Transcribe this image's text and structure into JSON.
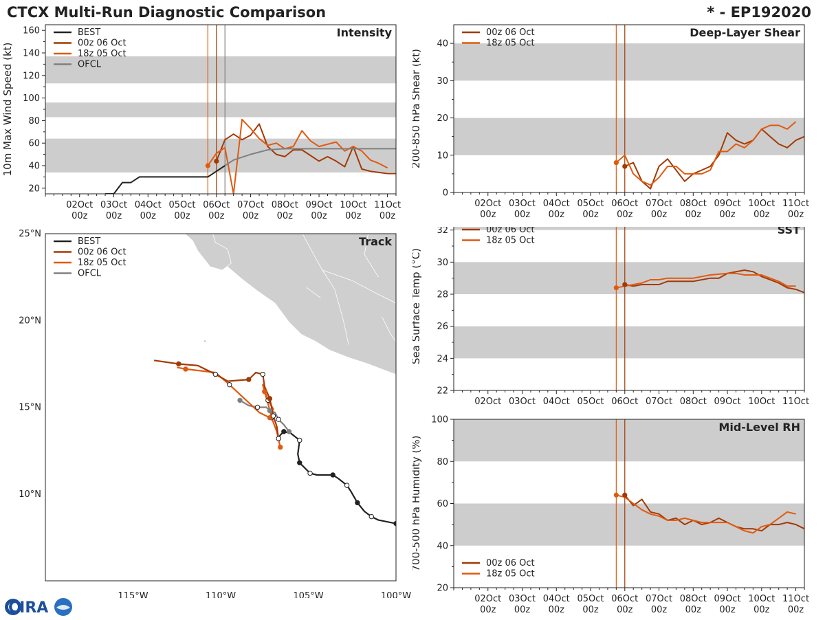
{
  "header": {
    "title": "CTCX Multi-Run Diagnostic Comparison",
    "storm_id": "* - EP192020"
  },
  "logo": {
    "text": "CIRA"
  },
  "colors": {
    "best": "#222222",
    "run_00z": "#a23a05",
    "run_18z": "#e05a10",
    "ofcl": "#808080",
    "band": "#cdcdcd"
  },
  "time_ticks": [
    {
      "day": 2,
      "l1": "02Oct",
      "l2": "00z"
    },
    {
      "day": 3,
      "l1": "03Oct",
      "l2": "00z"
    },
    {
      "day": 4,
      "l1": "04Oct",
      "l2": "00z"
    },
    {
      "day": 5,
      "l1": "05Oct",
      "l2": "00z"
    },
    {
      "day": 6,
      "l1": "06Oct",
      "l2": "00z"
    },
    {
      "day": 7,
      "l1": "07Oct",
      "l2": "00z"
    },
    {
      "day": 8,
      "l1": "08Oct",
      "l2": "00z"
    },
    {
      "day": 9,
      "l1": "09Oct",
      "l2": "00z"
    },
    {
      "day": 10,
      "l1": "10Oct",
      "l2": "00z"
    },
    {
      "day": 11,
      "l1": "11Oct",
      "l2": "00z"
    }
  ],
  "chart_data": [
    {
      "id": "intensity",
      "type": "line",
      "title": "Intensity",
      "ylabel": "10m Max Wind Speed (kt)",
      "xlim": [
        1.0,
        11.25
      ],
      "ylim": [
        15,
        165
      ],
      "yticks": [
        20,
        40,
        60,
        80,
        100,
        120,
        140,
        160
      ],
      "bands": [
        [
          34,
          64
        ],
        [
          83,
          96
        ],
        [
          113,
          137
        ]
      ],
      "vlines": [
        {
          "x": 5.75,
          "series": "18z"
        },
        {
          "x": 6.0,
          "series": "00z"
        },
        {
          "x": 6.25,
          "series": "ofcl"
        }
      ],
      "legend": [
        {
          "label": "BEST",
          "series": "best"
        },
        {
          "label": "00z 06 Oct",
          "series": "00z"
        },
        {
          "label": "18z 05 Oct",
          "series": "18z"
        },
        {
          "label": "OFCL",
          "series": "ofcl"
        }
      ],
      "series": [
        {
          "name": "BEST",
          "key": "best",
          "x": [
            2.75,
            3.0,
            3.25,
            3.5,
            3.75,
            4.0,
            4.5,
            5.0,
            5.5,
            5.75,
            6.0,
            6.25
          ],
          "y": [
            15,
            15,
            25,
            25,
            30,
            30,
            30,
            30,
            30,
            30,
            35,
            40
          ]
        },
        {
          "name": "00z 06 Oct",
          "key": "00z",
          "x": [
            6.0,
            6.25,
            6.5,
            6.75,
            7.0,
            7.25,
            7.5,
            7.75,
            8.0,
            8.25,
            8.5,
            9.0,
            9.25,
            9.5,
            9.75,
            10.0,
            10.25,
            10.5,
            11.0,
            11.25
          ],
          "y": [
            44,
            63,
            68,
            63,
            67,
            77,
            57,
            50,
            48,
            54,
            54,
            44,
            48,
            44,
            39,
            57,
            37,
            35,
            33,
            33
          ]
        },
        {
          "name": "18z 05 Oct",
          "key": "18z",
          "x": [
            5.75,
            6.0,
            6.25,
            6.5,
            6.75,
            7.0,
            7.25,
            7.5,
            7.75,
            8.0,
            8.25,
            8.5,
            8.75,
            9.0,
            9.5,
            9.75,
            10.0,
            10.25,
            10.5,
            10.75,
            11.0
          ],
          "y": [
            40,
            51,
            56,
            15,
            81,
            73,
            64,
            58,
            60,
            55,
            57,
            71,
            62,
            57,
            61,
            53,
            57,
            53,
            45,
            42,
            38
          ]
        },
        {
          "name": "OFCL",
          "key": "ofcl",
          "x": [
            6.25,
            6.5,
            7.0,
            7.5,
            8.0,
            8.5,
            9.0,
            9.5,
            10.0,
            11.25
          ],
          "y": [
            40,
            45,
            50,
            54,
            55,
            55,
            55,
            55,
            55,
            55
          ]
        }
      ],
      "markers": [
        {
          "key": "18z",
          "x": 5.75,
          "y": 40
        },
        {
          "key": "00z",
          "x": 6.0,
          "y": 44
        }
      ]
    },
    {
      "id": "shear",
      "type": "line",
      "title": "Deep-Layer Shear",
      "ylabel": "200-850 hPa Shear (kt)",
      "xlim": [
        1.0,
        11.25
      ],
      "ylim": [
        0,
        45
      ],
      "yticks": [
        0,
        10,
        20,
        30,
        40
      ],
      "bands": [
        [
          10,
          20
        ],
        [
          30,
          40
        ]
      ],
      "vlines": [
        {
          "x": 5.75,
          "series": "18z"
        },
        {
          "x": 6.0,
          "series": "00z"
        }
      ],
      "legend": [
        {
          "label": "00z 06 Oct",
          "series": "00z"
        },
        {
          "label": "18z 05 Oct",
          "series": "18z"
        }
      ],
      "series": [
        {
          "name": "00z 06 Oct",
          "key": "00z",
          "x": [
            6.0,
            6.25,
            6.5,
            6.75,
            7.0,
            7.25,
            7.5,
            7.75,
            8.0,
            8.25,
            8.5,
            8.75,
            9.0,
            9.25,
            9.5,
            9.75,
            10.0,
            10.25,
            10.5,
            10.75,
            11.0,
            11.25
          ],
          "y": [
            7,
            8,
            3,
            1,
            7,
            9,
            6,
            3,
            5,
            6,
            7,
            10,
            16,
            14,
            13,
            14,
            17,
            15,
            13,
            12,
            14,
            15
          ]
        },
        {
          "name": "18z 05 Oct",
          "key": "18z",
          "x": [
            5.75,
            6.0,
            6.25,
            6.5,
            6.75,
            7.0,
            7.25,
            7.5,
            7.75,
            8.0,
            8.25,
            8.5,
            8.75,
            9.0,
            9.25,
            9.5,
            9.75,
            10.0,
            10.25,
            10.5,
            10.75,
            11.0
          ],
          "y": [
            8,
            10,
            5,
            3,
            2,
            4,
            7,
            7,
            5,
            5,
            5,
            6,
            11,
            11,
            13,
            12,
            14,
            17,
            18,
            18,
            17,
            19
          ]
        }
      ],
      "markers": [
        {
          "key": "18z",
          "x": 5.75,
          "y": 8
        },
        {
          "key": "00z",
          "x": 6.0,
          "y": 7
        }
      ]
    },
    {
      "id": "sst",
      "type": "line",
      "title": "SST",
      "ylabel": "Sea Surface Temp (°C)",
      "xlim": [
        1.0,
        11.25
      ],
      "ylim": [
        22,
        32.5
      ],
      "yticks": [
        22,
        24,
        26,
        28,
        30,
        32
      ],
      "bands": [
        [
          24,
          26
        ],
        [
          28,
          30
        ],
        [
          32,
          32.5
        ]
      ],
      "vlines": [
        {
          "x": 5.75,
          "series": "18z"
        },
        {
          "x": 6.0,
          "series": "00z"
        }
      ],
      "legend": [
        {
          "label": "00z 06 Oct",
          "series": "00z"
        },
        {
          "label": "18z 05 Oct",
          "series": "18z"
        }
      ],
      "series": [
        {
          "name": "00z 06 Oct",
          "key": "00z",
          "x": [
            6.0,
            6.25,
            6.5,
            7.0,
            7.25,
            7.5,
            8.0,
            8.5,
            8.75,
            9.0,
            9.25,
            9.5,
            9.75,
            10.0,
            10.25,
            10.5,
            10.75,
            11.0,
            11.25
          ],
          "y": [
            28.6,
            28.5,
            28.6,
            28.6,
            28.8,
            28.8,
            28.8,
            29.0,
            29.0,
            29.3,
            29.4,
            29.5,
            29.4,
            29.1,
            28.9,
            28.7,
            28.4,
            28.3,
            28.1
          ]
        },
        {
          "name": "18z 05 Oct",
          "key": "18z",
          "x": [
            5.75,
            6.0,
            6.25,
            6.5,
            6.75,
            7.0,
            7.25,
            7.5,
            8.0,
            8.25,
            8.5,
            9.0,
            9.25,
            9.5,
            9.75,
            10.0,
            10.25,
            10.5,
            10.75,
            11.0
          ],
          "y": [
            28.4,
            28.5,
            28.6,
            28.7,
            28.9,
            28.9,
            29.0,
            29.0,
            29.0,
            29.1,
            29.2,
            29.3,
            29.3,
            29.2,
            29.2,
            29.2,
            29.0,
            28.8,
            28.5,
            28.5
          ]
        }
      ],
      "markers": [
        {
          "key": "18z",
          "x": 5.75,
          "y": 28.4
        },
        {
          "key": "00z",
          "x": 6.0,
          "y": 28.6
        }
      ]
    },
    {
      "id": "rh",
      "type": "line",
      "title": "Mid-Level RH",
      "ylabel": "700-500 hPa Humidity (%)",
      "xlim": [
        1.0,
        11.25
      ],
      "ylim": [
        20,
        100
      ],
      "yticks": [
        20,
        40,
        60,
        80,
        100
      ],
      "bands": [
        [
          40,
          60
        ],
        [
          80,
          100
        ]
      ],
      "vlines": [
        {
          "x": 5.75,
          "series": "18z"
        },
        {
          "x": 6.0,
          "series": "00z"
        }
      ],
      "legend": [
        {
          "label": "00z 06 Oct",
          "series": "00z"
        },
        {
          "label": "18z 05 Oct",
          "series": "18z"
        }
      ],
      "series": [
        {
          "name": "00z 06 Oct",
          "key": "00z",
          "x": [
            6.0,
            6.25,
            6.5,
            6.75,
            7.0,
            7.25,
            7.5,
            7.75,
            8.0,
            8.25,
            8.5,
            8.75,
            9.0,
            9.25,
            9.5,
            9.75,
            10.0,
            10.25,
            10.5,
            10.75,
            11.0,
            11.25
          ],
          "y": [
            64,
            59,
            62,
            56,
            55,
            52,
            53,
            50,
            52,
            50,
            51,
            53,
            51,
            49,
            48,
            48,
            47,
            50,
            50,
            51,
            50,
            48
          ]
        },
        {
          "name": "18z 05 Oct",
          "key": "18z",
          "x": [
            5.75,
            6.0,
            6.25,
            6.5,
            6.75,
            7.0,
            7.25,
            7.5,
            7.75,
            8.0,
            8.25,
            8.5,
            8.75,
            9.0,
            9.25,
            9.5,
            9.75,
            10.0,
            10.25,
            10.5,
            10.75,
            11.0
          ],
          "y": [
            64,
            63,
            60,
            57,
            55,
            54,
            52,
            52,
            53,
            52,
            51,
            51,
            51,
            51,
            49,
            47,
            46,
            49,
            50,
            53,
            56,
            55
          ]
        }
      ],
      "markers": [
        {
          "key": "18z",
          "x": 5.75,
          "y": 64
        },
        {
          "key": "00z",
          "x": 6.0,
          "y": 64
        }
      ]
    },
    {
      "id": "track",
      "type": "scatter",
      "title": "Track",
      "xlim": [
        -120,
        -100
      ],
      "ylim": [
        5,
        25
      ],
      "xticks": [
        {
          "v": -115,
          "label": "115°W"
        },
        {
          "v": -110,
          "label": "110°W"
        },
        {
          "v": -105,
          "label": "105°W"
        },
        {
          "v": -100,
          "label": "100°W"
        }
      ],
      "yticks": [
        {
          "v": 10,
          "label": "10°N"
        },
        {
          "v": 15,
          "label": "15°N"
        },
        {
          "v": 20,
          "label": "20°N"
        },
        {
          "v": 25,
          "label": "25°N"
        }
      ],
      "legend": [
        {
          "label": "BEST",
          "series": "best"
        },
        {
          "label": "00z 06 Oct",
          "series": "00z"
        },
        {
          "label": "18z 05 Oct",
          "series": "18z"
        },
        {
          "label": "OFCL",
          "series": "ofcl"
        }
      ],
      "series": [
        {
          "name": "BEST",
          "key": "best",
          "lon": [
            -100.0,
            -101.0,
            -101.4,
            -101.8,
            -102.2,
            -102.6,
            -102.8,
            -103.3,
            -103.6,
            -104.5,
            -104.9,
            -105.2,
            -105.5,
            -105.6,
            -105.5,
            -106.0,
            -106.4,
            -106.6,
            -106.7
          ],
          "lat": [
            8.3,
            8.5,
            8.7,
            9.0,
            9.5,
            10.2,
            10.5,
            10.9,
            11.1,
            11.1,
            11.2,
            11.5,
            11.8,
            12.3,
            13.1,
            13.5,
            13.6,
            13.4,
            13.2
          ],
          "filled": [
            1,
            0,
            1,
            0,
            1,
            0,
            1,
            0,
            1,
            0,
            1
          ]
        },
        {
          "name": "00z 06 Oct",
          "key": "00z",
          "lon": [
            -106.7,
            -106.8,
            -107.0,
            -107.1,
            -107.2,
            -107.5,
            -107.6,
            -108.0,
            -108.4,
            -109.6,
            -110.3,
            -111.3,
            -112.4,
            -113.8
          ],
          "lat": [
            13.2,
            13.9,
            14.5,
            15.0,
            15.5,
            16.2,
            16.9,
            17.0,
            16.6,
            16.5,
            16.9,
            17.4,
            17.5,
            17.7
          ]
        },
        {
          "name": "18z 05 Oct",
          "key": "18z",
          "lon": [
            -106.6,
            -106.8,
            -107.1,
            -107.3,
            -107.5,
            -107.6,
            -107.3,
            -107.0,
            -107.2,
            -107.8,
            -109.5,
            -110.3,
            -112.0,
            -112.5
          ],
          "lat": [
            12.7,
            13.6,
            14.4,
            15.2,
            15.9,
            16.3,
            15.4,
            14.9,
            14.4,
            14.7,
            16.3,
            17.0,
            17.2,
            17.3
          ]
        },
        {
          "name": "OFCL",
          "key": "ofcl",
          "lon": [
            -106.1,
            -106.4,
            -106.7,
            -106.9,
            -107.2,
            -107.4,
            -107.9,
            -108.4,
            -108.9
          ],
          "lat": [
            13.6,
            14.0,
            14.3,
            14.7,
            14.8,
            15.0,
            15.0,
            15.1,
            15.4
          ]
        }
      ]
    }
  ]
}
